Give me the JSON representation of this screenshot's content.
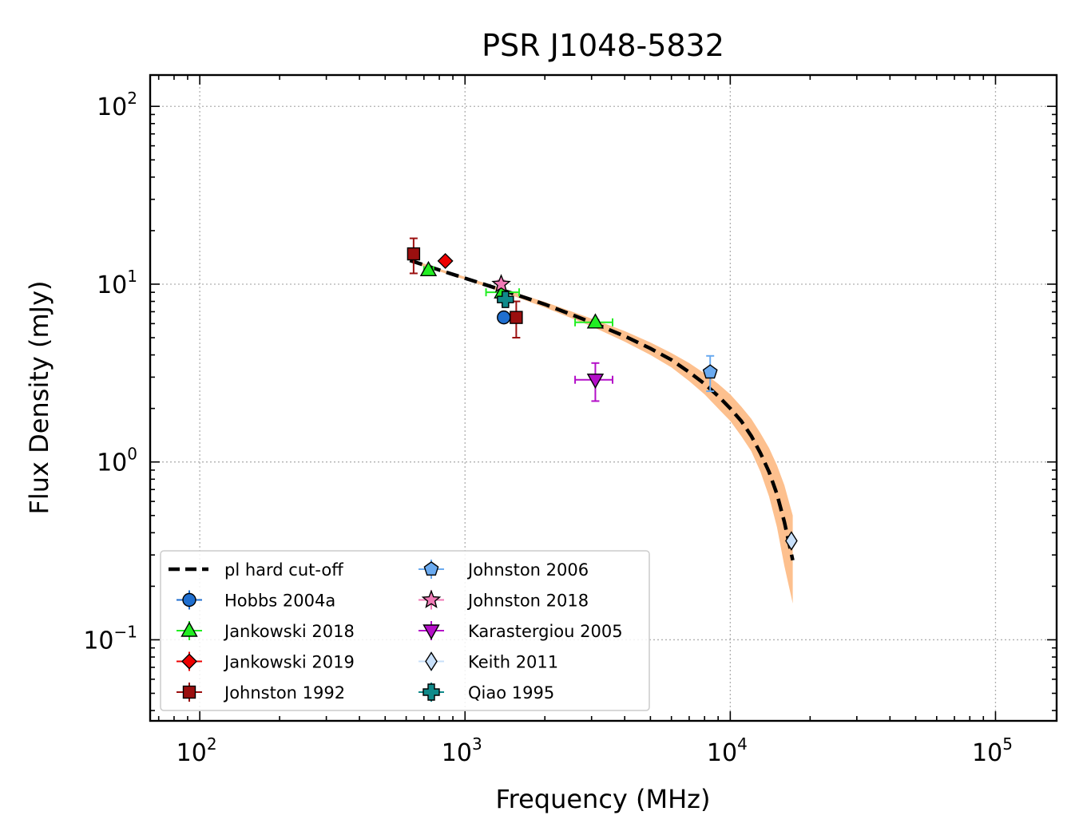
{
  "chart_data": {
    "type": "scatter",
    "title": "PSR J1048-5832",
    "xlabel": "Frequency (MHz)",
    "ylabel": "Flux Density (mJy)",
    "xscale": "log",
    "yscale": "log",
    "xlim": [
      65,
      170000
    ],
    "ylim": [
      0.035,
      150
    ],
    "grid": true,
    "legend_position": "lower-left",
    "x_ticks": [
      {
        "value": 100,
        "base": "10",
        "exp": "2"
      },
      {
        "value": 1000,
        "base": "10",
        "exp": "3"
      },
      {
        "value": 10000,
        "base": "10",
        "exp": "4"
      },
      {
        "value": 100000,
        "base": "10",
        "exp": "5"
      }
    ],
    "y_ticks": [
      {
        "value": 0.1,
        "base": "10",
        "exp": "−1"
      },
      {
        "value": 1,
        "base": "10",
        "exp": "0"
      },
      {
        "value": 10,
        "base": "10",
        "exp": "1"
      },
      {
        "value": 100,
        "base": "10",
        "exp": "2"
      }
    ],
    "fit": {
      "name": "pl hard cut-off",
      "color": "#000000",
      "band_color": "#fdc08e",
      "points": [
        {
          "x": 620,
          "y": 13.6,
          "lo": 13.3,
          "hi": 13.9
        },
        {
          "x": 800,
          "y": 12.0,
          "lo": 11.8,
          "hi": 12.2
        },
        {
          "x": 1000,
          "y": 10.8,
          "lo": 10.6,
          "hi": 11.0
        },
        {
          "x": 1500,
          "y": 8.9,
          "lo": 8.65,
          "hi": 9.1
        },
        {
          "x": 2000,
          "y": 7.7,
          "lo": 7.4,
          "hi": 7.95
        },
        {
          "x": 3000,
          "y": 6.1,
          "lo": 5.8,
          "hi": 6.4
        },
        {
          "x": 4000,
          "y": 5.1,
          "lo": 4.75,
          "hi": 5.45
        },
        {
          "x": 5000,
          "y": 4.35,
          "lo": 4.0,
          "hi": 4.7
        },
        {
          "x": 6000,
          "y": 3.75,
          "lo": 3.4,
          "hi": 4.1
        },
        {
          "x": 7000,
          "y": 3.2,
          "lo": 2.85,
          "hi": 3.6
        },
        {
          "x": 8000,
          "y": 2.75,
          "lo": 2.4,
          "hi": 3.15
        },
        {
          "x": 9000,
          "y": 2.35,
          "lo": 2.0,
          "hi": 2.75
        },
        {
          "x": 10000,
          "y": 2.0,
          "lo": 1.7,
          "hi": 2.4
        },
        {
          "x": 11000,
          "y": 1.7,
          "lo": 1.4,
          "hi": 2.05
        },
        {
          "x": 12000,
          "y": 1.4,
          "lo": 1.15,
          "hi": 1.75
        },
        {
          "x": 13000,
          "y": 1.12,
          "lo": 0.88,
          "hi": 1.45
        },
        {
          "x": 14000,
          "y": 0.88,
          "lo": 0.64,
          "hi": 1.2
        },
        {
          "x": 15000,
          "y": 0.66,
          "lo": 0.43,
          "hi": 0.96
        },
        {
          "x": 16000,
          "y": 0.46,
          "lo": 0.26,
          "hi": 0.74
        },
        {
          "x": 17200,
          "y": 0.28,
          "lo": 0.16,
          "hi": 0.5
        }
      ]
    },
    "series": [
      {
        "name": "Hobbs 2004a",
        "marker": "circle",
        "color": "#1f6fd0",
        "ecolor": "#1f6fd0",
        "points": [
          {
            "x": 1400,
            "y": 6.5,
            "xerr": [
              1400,
              1400
            ],
            "yerr": [
              6.5,
              6.5
            ]
          }
        ]
      },
      {
        "name": "Jankowski 2018",
        "marker": "triangle-up",
        "color": "#22ee22",
        "ecolor": "#22ee22",
        "points": [
          {
            "x": 728,
            "y": 12.0,
            "xerr": [
              700,
              760
            ],
            "yerr": [
              12.0,
              12.0
            ]
          },
          {
            "x": 1382,
            "y": 9.0,
            "xerr": [
              1200,
              1600
            ],
            "yerr": [
              8.6,
              9.4
            ]
          },
          {
            "x": 3100,
            "y": 6.1,
            "xerr": [
              2600,
              3600
            ],
            "yerr": [
              5.9,
              6.3
            ]
          }
        ]
      },
      {
        "name": "Jankowski 2019",
        "marker": "diamond",
        "color": "#ee0000",
        "ecolor": "#ee0000",
        "points": [
          {
            "x": 843,
            "y": 13.5,
            "xerr": [
              843,
              843
            ],
            "yerr": [
              13.5,
              13.5
            ]
          }
        ]
      },
      {
        "name": "Johnston 1992",
        "marker": "square",
        "color": "#9b0f0f",
        "ecolor": "#9b0f0f",
        "points": [
          {
            "x": 640,
            "y": 14.8,
            "xerr": [
              640,
              640
            ],
            "yerr": [
              11.5,
              18.1
            ]
          },
          {
            "x": 1560,
            "y": 6.5,
            "xerr": [
              1560,
              1560
            ],
            "yerr": [
              5.0,
              8.0
            ]
          }
        ]
      },
      {
        "name": "Johnston 2006",
        "marker": "pentagon",
        "color": "#6aaaf0",
        "ecolor": "#6aaaf0",
        "points": [
          {
            "x": 8400,
            "y": 3.2,
            "xerr": [
              8400,
              8400
            ],
            "yerr": [
              2.5,
              3.95
            ]
          }
        ]
      },
      {
        "name": "Johnston 2018",
        "marker": "star",
        "color": "#f07ab6",
        "ecolor": "#f07ab6",
        "points": [
          {
            "x": 1369,
            "y": 10.0,
            "xerr": [
              1369,
              1369
            ],
            "yerr": [
              9.5,
              10.5
            ]
          }
        ]
      },
      {
        "name": "Karastergiou 2005",
        "marker": "triangle-down",
        "color": "#b40fc8",
        "ecolor": "#b40fc8",
        "points": [
          {
            "x": 3100,
            "y": 2.9,
            "xerr": [
              2600,
              3600
            ],
            "yerr": [
              2.2,
              3.6
            ]
          }
        ]
      },
      {
        "name": "Keith 2011",
        "marker": "thin-diamond",
        "color": "#c8e0fa",
        "ecolor": "#c8e0fa",
        "points": [
          {
            "x": 17000,
            "y": 0.36,
            "xerr": [
              17000,
              17000
            ],
            "yerr": [
              0.36,
              0.36
            ]
          }
        ]
      },
      {
        "name": "Qiao 1995",
        "marker": "plus",
        "color": "#0f8a8a",
        "ecolor": "#0f8a8a",
        "points": [
          {
            "x": 1420,
            "y": 8.2,
            "xerr": [
              1380,
              1460
            ],
            "yerr": [
              7.6,
              8.8
            ]
          }
        ]
      }
    ]
  }
}
